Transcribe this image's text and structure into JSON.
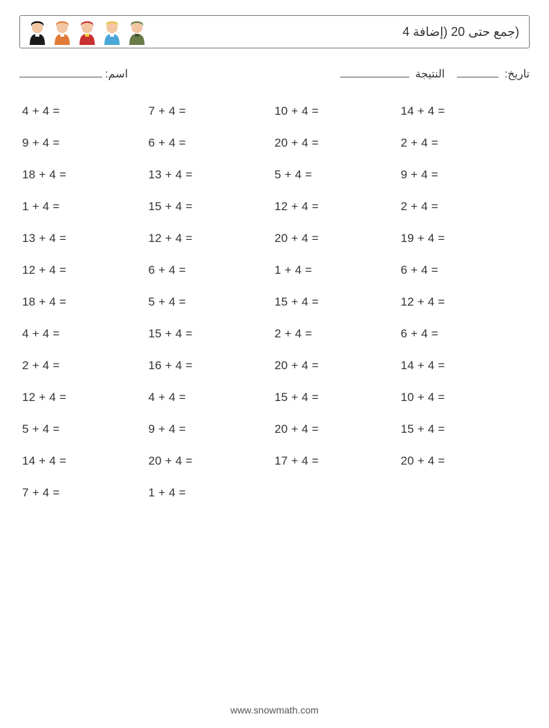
{
  "title": "(جمع حتى 20 (إضافة 4",
  "meta": {
    "name_label": "اسم:",
    "date_label": "تاريخ:",
    "score_label": "النتيجة"
  },
  "avatars": [
    {
      "name": "priest",
      "skin": "#f1c6a1",
      "body": "#1a1a1a",
      "hair": "#000000",
      "accent": "#ffffff"
    },
    {
      "name": "woman",
      "skin": "#f1c6a1",
      "body": "#e07a39",
      "hair": "#e07a39",
      "accent": "#ffffff"
    },
    {
      "name": "firefighter",
      "skin": "#f1c6a1",
      "body": "#c93030",
      "hair": "#c93030",
      "accent": "#f5d23a"
    },
    {
      "name": "construction",
      "skin": "#f1c6a1",
      "body": "#4aa7d6",
      "hair": "#e8c63c",
      "accent": "#ffffff"
    },
    {
      "name": "soldier",
      "skin": "#f1c6a1",
      "body": "#6a7b4a",
      "hair": "#6a7b4a",
      "accent": "#45532f"
    }
  ],
  "footer": "www.snowmath.com",
  "addend": 4,
  "columns": [
    [
      4,
      9,
      18,
      1,
      13,
      12,
      18,
      4,
      2,
      12,
      5,
      14,
      7
    ],
    [
      7,
      6,
      13,
      15,
      12,
      6,
      5,
      15,
      16,
      4,
      9,
      20,
      1
    ],
    [
      10,
      20,
      5,
      12,
      20,
      1,
      15,
      2,
      20,
      15,
      20,
      17
    ],
    [
      14,
      2,
      9,
      2,
      19,
      6,
      12,
      6,
      14,
      10,
      15,
      20
    ]
  ],
  "problem_fontsize": 17,
  "title_fontsize": 18,
  "colors": {
    "text": "#333333",
    "border": "#777777",
    "blank_line": "#555555",
    "background": "#ffffff"
  }
}
